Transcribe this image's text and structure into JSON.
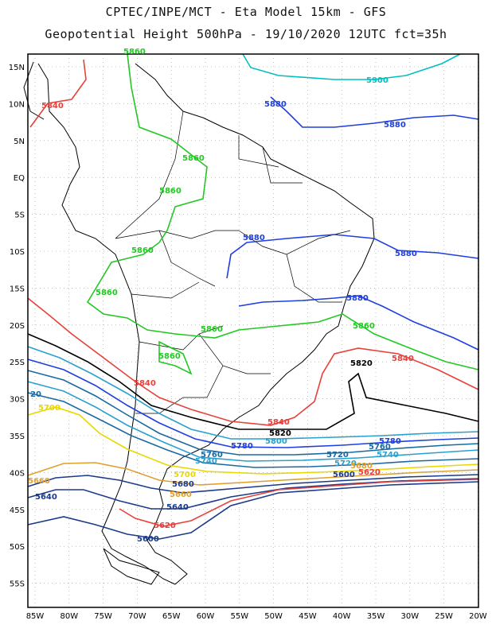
{
  "title_line1": "CPTEC/INPE/MCT -  Eta Model 15km - GFS",
  "title_line2": "Geopotential Height 500hPa - 19/10/2020 12UTC fct=35h",
  "lat_labels": [
    "15N",
    "10N",
    "5N",
    "EQ",
    "5S",
    "10S",
    "15S",
    "20S",
    "25S",
    "30S",
    "35S",
    "40S",
    "45S",
    "50S",
    "55S"
  ],
  "lon_labels": [
    "85W",
    "80W",
    "75W",
    "70W",
    "65W",
    "60W",
    "55W",
    "50W",
    "45W",
    "40W",
    "35W",
    "30W",
    "25W",
    "20W"
  ],
  "contour_labels": [
    {
      "text": "5900",
      "color": "#00c0c0"
    },
    {
      "text": "5880",
      "color": "#1f3fe0"
    },
    {
      "text": "5880",
      "color": "#1f3fe0"
    },
    {
      "text": "5880",
      "color": "#1f3fe0"
    },
    {
      "text": "5880",
      "color": "#1f3fe0"
    },
    {
      "text": "5880",
      "color": "#1f3fe0"
    },
    {
      "text": "5860",
      "color": "#22c822"
    },
    {
      "text": "5860",
      "color": "#22c822"
    },
    {
      "text": "5860",
      "color": "#22c822"
    },
    {
      "text": "5860",
      "color": "#22c822"
    },
    {
      "text": "5860",
      "color": "#22c822"
    },
    {
      "text": "5860",
      "color": "#22c822"
    },
    {
      "text": "5860",
      "color": "#22c822"
    },
    {
      "text": "5860",
      "color": "#22c822"
    },
    {
      "text": "5840",
      "color": "#e8403a"
    },
    {
      "text": "5840",
      "color": "#e8403a"
    },
    {
      "text": "5840",
      "color": "#e8403a"
    },
    {
      "text": "5840",
      "color": "#e8403a"
    },
    {
      "text": "5820",
      "color": "#000000"
    },
    {
      "text": "5820",
      "color": "#000000"
    },
    {
      "text": "5800",
      "color": "#2aa0d0"
    },
    {
      "text": "5780",
      "color": "#1f3fe0"
    },
    {
      "text": "5780",
      "color": "#1f3fe0"
    },
    {
      "text": "5760",
      "color": "#1a6aa0"
    },
    {
      "text": "5760",
      "color": "#1a6aa0"
    },
    {
      "text": "5740",
      "color": "#2aa0d0"
    },
    {
      "text": "5740",
      "color": "#2aa0d0"
    },
    {
      "text": "5720",
      "color": "#1a6aa0"
    },
    {
      "text": "5720",
      "color": "#2aa0d0"
    },
    {
      "text": "5700",
      "color": "#e8d800"
    },
    {
      "text": "5700",
      "color": "#e8d800"
    },
    {
      "text": "5680",
      "color": "#1a3a8a"
    },
    {
      "text": "5680",
      "color": "#e0a030"
    },
    {
      "text": "5660",
      "color": "#e0a030"
    },
    {
      "text": "5660",
      "color": "#e0a030"
    },
    {
      "text": "5640",
      "color": "#1a3a8a"
    },
    {
      "text": "5640",
      "color": "#1a3a8a"
    },
    {
      "text": "5620",
      "color": "#e8403a"
    },
    {
      "text": "5620",
      "color": "#e8403a"
    },
    {
      "text": "5600",
      "color": "#1a3a8a"
    },
    {
      "text": "5600",
      "color": "#1a3a8a"
    },
    {
      "text": "20",
      "color": "#1a6aa0"
    }
  ]
}
